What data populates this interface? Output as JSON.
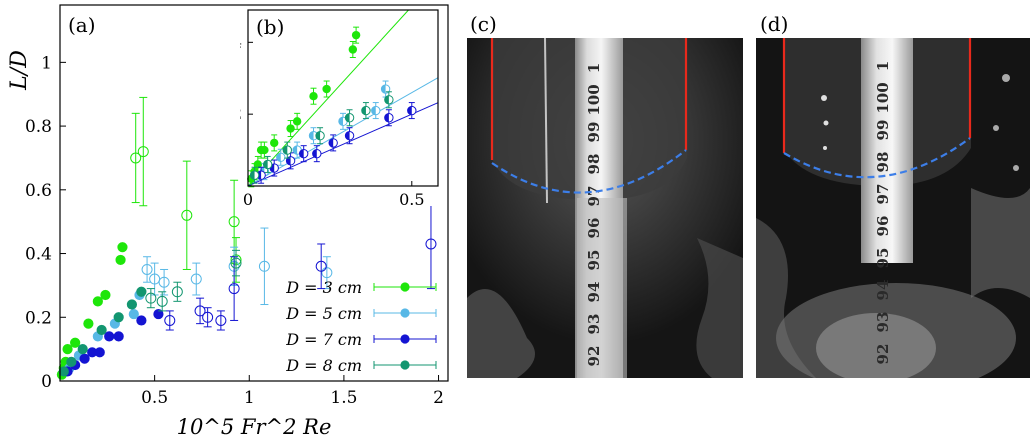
{
  "figure": {
    "panels": {
      "a": "(a)",
      "b": "(b)",
      "c": "(c)",
      "d": "(d)"
    },
    "ruler_digits": [
      "1",
      "100",
      "99",
      "98",
      "97",
      "96",
      "95",
      "94",
      "93",
      "92"
    ]
  },
  "chart_data": [
    {
      "type": "scatter",
      "panel": "(a)",
      "title": "",
      "xlabel": "10^5 Fr^2 Re",
      "ylabel": "L/D",
      "xlim": [
        0,
        2.05
      ],
      "ylim": [
        0,
        1.18
      ],
      "xticks": [
        0.5,
        1,
        1.5,
        2
      ],
      "yticks": [
        0,
        0.2,
        0.4,
        0.6,
        0.8,
        1
      ],
      "grid": false,
      "legend_position": "bottom-right",
      "series": [
        {
          "name": "D = 3 cm",
          "color": "#1ee60a",
          "points": [
            {
              "x": 0.01,
              "y": 0.02,
              "filled": true
            },
            {
              "x": 0.02,
              "y": 0.04,
              "filled": true
            },
            {
              "x": 0.03,
              "y": 0.06,
              "filled": true
            },
            {
              "x": 0.04,
              "y": 0.1,
              "filled": true
            },
            {
              "x": 0.08,
              "y": 0.12,
              "filled": true
            },
            {
              "x": 0.15,
              "y": 0.18,
              "filled": true
            },
            {
              "x": 0.2,
              "y": 0.25,
              "filled": true
            },
            {
              "x": 0.24,
              "y": 0.27,
              "filled": true
            },
            {
              "x": 0.32,
              "y": 0.38,
              "filled": true
            },
            {
              "x": 0.33,
              "y": 0.42,
              "filled": true
            },
            {
              "x": 0.4,
              "y": 0.7,
              "filled": false,
              "err": 0.14
            },
            {
              "x": 0.44,
              "y": 0.72,
              "filled": false,
              "err": 0.17
            },
            {
              "x": 0.67,
              "y": 0.52,
              "filled": false,
              "err": 0.17
            },
            {
              "x": 0.92,
              "y": 0.5,
              "filled": false,
              "err": 0.13
            },
            {
              "x": 0.93,
              "y": 0.38,
              "filled": false,
              "err": 0.07
            }
          ]
        },
        {
          "name": "D = 5 cm",
          "color": "#58b8e6",
          "points": [
            {
              "x": 0.05,
              "y": 0.04,
              "filled": true
            },
            {
              "x": 0.1,
              "y": 0.08,
              "filled": true
            },
            {
              "x": 0.2,
              "y": 0.14,
              "filled": true
            },
            {
              "x": 0.29,
              "y": 0.18,
              "filled": true
            },
            {
              "x": 0.39,
              "y": 0.21,
              "filled": true
            },
            {
              "x": 0.42,
              "y": 0.27,
              "filled": true
            },
            {
              "x": 0.46,
              "y": 0.35,
              "filled": false,
              "err": 0.04
            },
            {
              "x": 0.5,
              "y": 0.32,
              "filled": false,
              "err": 0.05
            },
            {
              "x": 0.55,
              "y": 0.31,
              "filled": false,
              "err": 0.04
            },
            {
              "x": 0.72,
              "y": 0.32,
              "filled": false,
              "err": 0.05
            },
            {
              "x": 0.92,
              "y": 0.36,
              "filled": false,
              "err": 0.06
            },
            {
              "x": 1.08,
              "y": 0.36,
              "filled": false,
              "err": 0.12
            },
            {
              "x": 1.41,
              "y": 0.34,
              "filled": false,
              "err": 0.05
            }
          ]
        },
        {
          "name": "D = 7 cm",
          "color": "#1414d2",
          "points": [
            {
              "x": 0.04,
              "y": 0.03,
              "filled": true
            },
            {
              "x": 0.08,
              "y": 0.05,
              "filled": true
            },
            {
              "x": 0.13,
              "y": 0.07,
              "filled": true
            },
            {
              "x": 0.17,
              "y": 0.09,
              "filled": true
            },
            {
              "x": 0.21,
              "y": 0.09,
              "filled": true
            },
            {
              "x": 0.26,
              "y": 0.14,
              "filled": true
            },
            {
              "x": 0.31,
              "y": 0.14,
              "filled": true
            },
            {
              "x": 0.43,
              "y": 0.19,
              "filled": true
            },
            {
              "x": 0.52,
              "y": 0.21,
              "filled": true
            },
            {
              "x": 0.58,
              "y": 0.19,
              "filled": false,
              "err": 0.03
            },
            {
              "x": 0.74,
              "y": 0.22,
              "filled": false,
              "err": 0.04
            },
            {
              "x": 0.78,
              "y": 0.2,
              "filled": false,
              "err": 0.03
            },
            {
              "x": 0.85,
              "y": 0.19,
              "filled": false,
              "err": 0.03
            },
            {
              "x": 0.92,
              "y": 0.29,
              "filled": false,
              "err": 0.1
            },
            {
              "x": 1.38,
              "y": 0.36,
              "filled": false,
              "err": 0.07
            },
            {
              "x": 1.96,
              "y": 0.43,
              "filled": false,
              "err": 0.14
            }
          ]
        },
        {
          "name": "D = 8 cm",
          "color": "#139670",
          "points": [
            {
              "x": 0.02,
              "y": 0.03,
              "filled": true
            },
            {
              "x": 0.06,
              "y": 0.06,
              "filled": true
            },
            {
              "x": 0.12,
              "y": 0.1,
              "filled": true
            },
            {
              "x": 0.22,
              "y": 0.16,
              "filled": true
            },
            {
              "x": 0.31,
              "y": 0.2,
              "filled": true
            },
            {
              "x": 0.38,
              "y": 0.24,
              "filled": true
            },
            {
              "x": 0.43,
              "y": 0.28,
              "filled": true
            },
            {
              "x": 0.48,
              "y": 0.26,
              "filled": false,
              "err": 0.03
            },
            {
              "x": 0.54,
              "y": 0.25,
              "filled": false,
              "err": 0.03
            },
            {
              "x": 0.62,
              "y": 0.28,
              "filled": false,
              "err": 0.03
            },
            {
              "x": 0.93,
              "y": 0.37,
              "filled": false,
              "err": 0.04
            }
          ]
        }
      ]
    },
    {
      "type": "scatter",
      "panel": "(b)",
      "title": "",
      "xlabel": "",
      "ylabel": "",
      "xlim": [
        0,
        0.58
      ],
      "ylim": [
        0,
        0.49
      ],
      "xticks": [
        0,
        0.5
      ],
      "yticks": [
        0.2,
        0.4
      ],
      "grid": false,
      "fits": [
        {
          "series": "D = 3 cm",
          "color": "#1ee60a",
          "slope": 1.0
        },
        {
          "series": "D = 5 cm",
          "color": "#58b8e6",
          "slope": 0.52
        },
        {
          "series": "D = 7 cm",
          "color": "#1414d2",
          "slope": 0.4
        }
      ],
      "series": [
        {
          "name": "D = 3 cm",
          "color": "#1ee60a",
          "points": [
            {
              "x": 0.01,
              "y": 0.02
            },
            {
              "x": 0.02,
              "y": 0.04
            },
            {
              "x": 0.03,
              "y": 0.06
            },
            {
              "x": 0.04,
              "y": 0.1
            },
            {
              "x": 0.05,
              "y": 0.1
            },
            {
              "x": 0.08,
              "y": 0.12
            },
            {
              "x": 0.13,
              "y": 0.16
            },
            {
              "x": 0.15,
              "y": 0.18
            },
            {
              "x": 0.2,
              "y": 0.25
            },
            {
              "x": 0.24,
              "y": 0.27
            },
            {
              "x": 0.32,
              "y": 0.38
            },
            {
              "x": 0.33,
              "y": 0.42
            }
          ]
        },
        {
          "name": "D = 5 cm",
          "color": "#58b8e6",
          "points": [
            {
              "x": 0.05,
              "y": 0.04
            },
            {
              "x": 0.1,
              "y": 0.08
            },
            {
              "x": 0.15,
              "y": 0.1
            },
            {
              "x": 0.2,
              "y": 0.14
            },
            {
              "x": 0.29,
              "y": 0.18
            },
            {
              "x": 0.39,
              "y": 0.21
            },
            {
              "x": 0.42,
              "y": 0.27
            }
          ]
        },
        {
          "name": "D = 7 cm",
          "color": "#1414d2",
          "points": [
            {
              "x": 0.04,
              "y": 0.03
            },
            {
              "x": 0.08,
              "y": 0.05
            },
            {
              "x": 0.13,
              "y": 0.07
            },
            {
              "x": 0.17,
              "y": 0.09
            },
            {
              "x": 0.21,
              "y": 0.09
            },
            {
              "x": 0.26,
              "y": 0.12
            },
            {
              "x": 0.31,
              "y": 0.14
            },
            {
              "x": 0.43,
              "y": 0.19
            },
            {
              "x": 0.5,
              "y": 0.21
            }
          ]
        },
        {
          "name": "D = 8 cm",
          "color": "#139670",
          "points": [
            {
              "x": 0.02,
              "y": 0.03
            },
            {
              "x": 0.06,
              "y": 0.06
            },
            {
              "x": 0.12,
              "y": 0.1
            },
            {
              "x": 0.22,
              "y": 0.14
            },
            {
              "x": 0.31,
              "y": 0.19
            },
            {
              "x": 0.36,
              "y": 0.21
            },
            {
              "x": 0.43,
              "y": 0.24
            }
          ]
        }
      ]
    }
  ]
}
